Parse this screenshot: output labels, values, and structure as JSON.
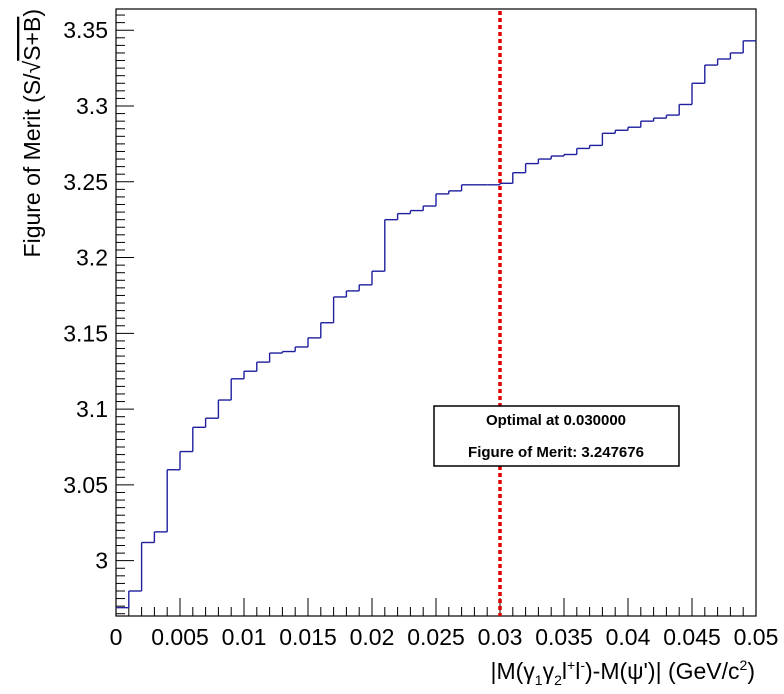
{
  "chart_data": {
    "type": "line",
    "style": "step-histogram",
    "xlabel_parts": {
      "open": "|M(γ",
      "sub1": "1",
      "gamma2": "γ",
      "sub2": "2",
      "lep": "l",
      "plus": "+",
      "lep2": "l",
      "minus": "-",
      "close": ")-M(ψ')|  (GeV/c",
      "sq": "2",
      "end": ")"
    },
    "ylabel_parts": {
      "text": "Figure of Merit (S/",
      "sqrt_sign": "√",
      "radicand": "S+B",
      "end": ")"
    },
    "xlim": [
      0,
      0.05
    ],
    "ylim": [
      2.9635,
      3.364
    ],
    "x_ticks": [
      "0",
      "0.005",
      "0.01",
      "0.015",
      "0.02",
      "0.025",
      "0.03",
      "0.035",
      "0.04",
      "0.045",
      "0.05"
    ],
    "y_ticks": [
      "3",
      "3.05",
      "3.1",
      "3.15",
      "3.2",
      "3.25",
      "3.3",
      "3.35"
    ],
    "bin_width": 0.001,
    "series": [
      {
        "color": "#1f1f9f",
        "x_start": [
          0.0,
          0.001,
          0.002,
          0.003,
          0.004,
          0.005,
          0.006,
          0.007,
          0.008,
          0.009,
          0.01,
          0.011,
          0.012,
          0.013,
          0.014,
          0.015,
          0.016,
          0.017,
          0.018,
          0.019,
          0.02,
          0.021,
          0.022,
          0.023,
          0.024,
          0.025,
          0.026,
          0.027,
          0.028,
          0.029,
          0.03,
          0.031,
          0.032,
          0.033,
          0.034,
          0.035,
          0.036,
          0.037,
          0.038,
          0.039,
          0.04,
          0.041,
          0.042,
          0.043,
          0.044,
          0.045,
          0.046,
          0.047,
          0.048,
          0.049
        ],
        "values": [
          2.969,
          2.98,
          3.012,
          3.019,
          3.06,
          3.072,
          3.088,
          3.094,
          3.106,
          3.12,
          3.125,
          3.131,
          3.137,
          3.138,
          3.141,
          3.147,
          3.157,
          3.174,
          3.178,
          3.182,
          3.191,
          3.225,
          3.229,
          3.231,
          3.234,
          3.242,
          3.244,
          3.248,
          3.248,
          3.248,
          3.249,
          3.256,
          3.262,
          3.265,
          3.267,
          3.268,
          3.272,
          3.274,
          3.282,
          3.284,
          3.286,
          3.29,
          3.292,
          3.294,
          3.301,
          3.315,
          3.327,
          3.331,
          3.335,
          3.343
        ]
      }
    ],
    "optimal_line": {
      "x": 0.03,
      "color": "#e00000"
    },
    "annotation": {
      "line1": "Optimal at 0.030000",
      "line2": "Figure of Merit: 3.247676"
    },
    "grid": false,
    "legend": "none"
  }
}
